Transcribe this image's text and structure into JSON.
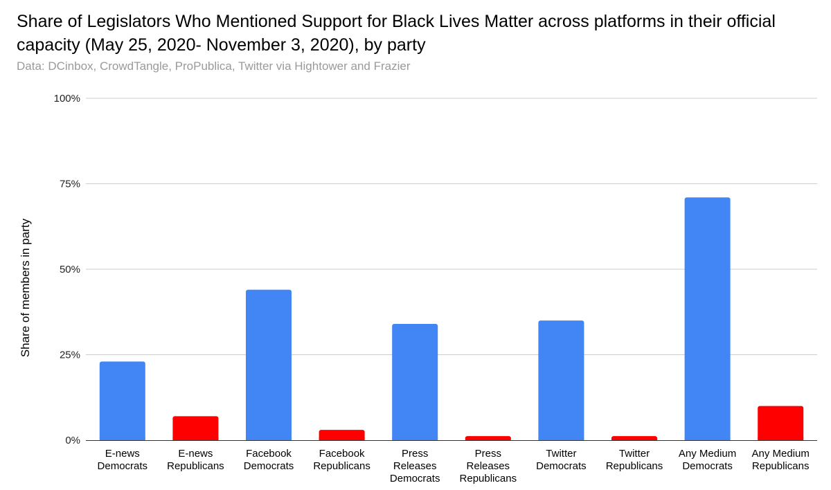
{
  "chart_data": {
    "type": "bar",
    "title": "Share of Legislators Who Mentioned Support for Black Lives Matter across platforms in their official capacity (May 25, 2020- November 3, 2020), by party",
    "subtitle": "Data: DCinbox, CrowdTangle, ProPublica, Twitter via Hightower and Frazier",
    "xlabel": "",
    "ylabel": "Share of members in party",
    "ylim": [
      0,
      100
    ],
    "y_ticks": [
      "0%",
      "25%",
      "50%",
      "75%",
      "100%"
    ],
    "y_tick_values": [
      0,
      25,
      50,
      75,
      100
    ],
    "grid": true,
    "categories": [
      [
        "E-news",
        "Democrats"
      ],
      [
        "E-news",
        "Republicans"
      ],
      [
        "Facebook",
        "Democrats"
      ],
      [
        "Facebook",
        "Republicans"
      ],
      [
        "Press",
        "Releases",
        "Democrats"
      ],
      [
        "Press",
        "Releases",
        "Republicans"
      ],
      [
        "Twitter",
        "Democrats"
      ],
      [
        "Twitter",
        "Republicans"
      ],
      [
        "Any Medium",
        "Democrats"
      ],
      [
        "Any Medium",
        "Republicans"
      ]
    ],
    "values": [
      23,
      7,
      44,
      3,
      34,
      1.2,
      35,
      1.2,
      71,
      10
    ],
    "bar_colors": [
      "#4285f4",
      "#ff0000",
      "#4285f4",
      "#ff0000",
      "#4285f4",
      "#ff0000",
      "#4285f4",
      "#ff0000",
      "#4285f4",
      "#ff0000"
    ]
  }
}
